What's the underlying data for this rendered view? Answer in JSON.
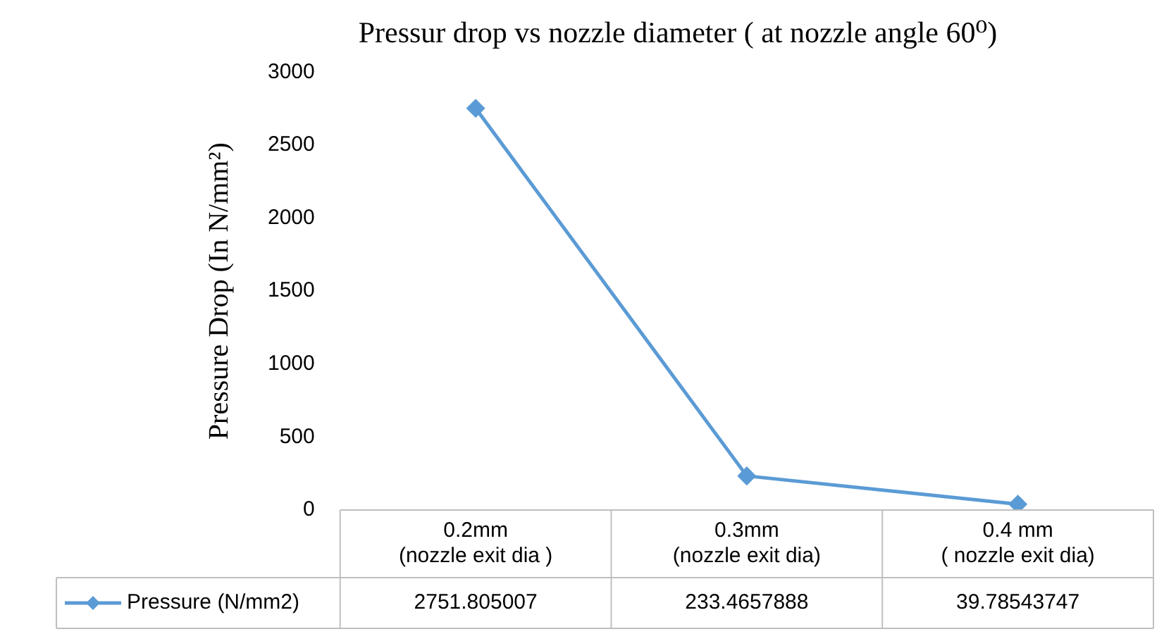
{
  "chart_data": {
    "type": "line",
    "title": "Pressur drop vs nozzle diameter ( at nozzle angle 60⁰)",
    "ylabel": "Pressure Drop (In N/mm²)",
    "categories": [
      "0.2mm\n(nozzle exit dia )",
      "0.3mm\n(nozzle exit dia)",
      "0.4 mm\n( nozzle exit dia)"
    ],
    "series": [
      {
        "name": "Pressure (N/mm2)",
        "color": "#5b9bd5",
        "values": [
          2751.805007,
          233.4657888,
          39.78543747
        ]
      }
    ],
    "ylim": [
      0,
      3000
    ],
    "yticks": [
      0,
      500,
      1000,
      1500,
      2000,
      2500,
      3000
    ],
    "grid": false,
    "legend": "bottom",
    "marker": "diamond",
    "line_style": "solid",
    "data_labels": true
  }
}
